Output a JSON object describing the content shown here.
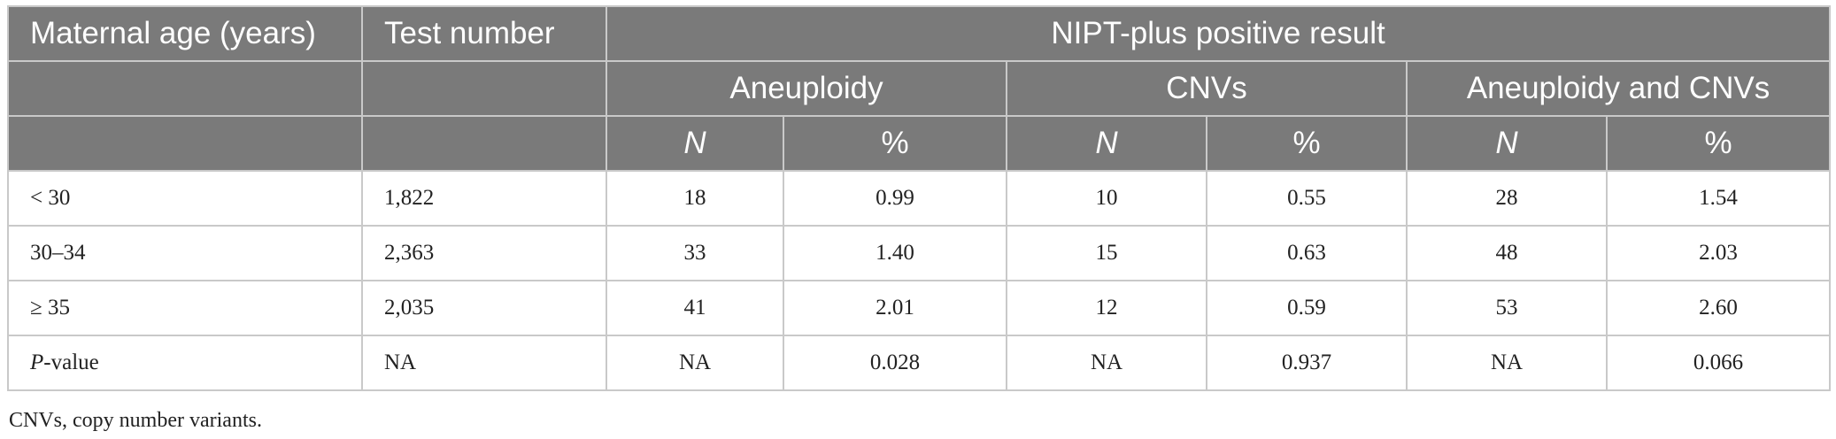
{
  "header": {
    "col_age": "Maternal age (years)",
    "col_test": "Test number",
    "group_title": "NIPT-plus positive result",
    "subgroups": [
      "Aneuploidy",
      "CNVs",
      "Aneuploidy and CNVs"
    ],
    "stat_labels": [
      "N",
      "%",
      "N",
      "%",
      "N",
      "%"
    ]
  },
  "rows": [
    {
      "age": "< 30",
      "test": "1,822",
      "cells": [
        "18",
        "0.99",
        "10",
        "0.55",
        "28",
        "1.54"
      ]
    },
    {
      "age": "30–34",
      "test": "2,363",
      "cells": [
        "33",
        "1.40",
        "15",
        "0.63",
        "48",
        "2.03"
      ]
    },
    {
      "age": "≥ 35",
      "test": "2,035",
      "cells": [
        "41",
        "2.01",
        "12",
        "0.59",
        "53",
        "2.60"
      ]
    },
    {
      "age_italic": "P",
      "age_rest": "-value",
      "test": "NA",
      "cells": [
        "NA",
        "0.028",
        "NA",
        "0.937",
        "NA",
        "0.066"
      ]
    }
  ],
  "footnote": "CNVs, copy number variants.",
  "colors": {
    "header_bg": "#7a7a7a",
    "header_text": "#ffffff",
    "border": "#c9c9c9"
  }
}
